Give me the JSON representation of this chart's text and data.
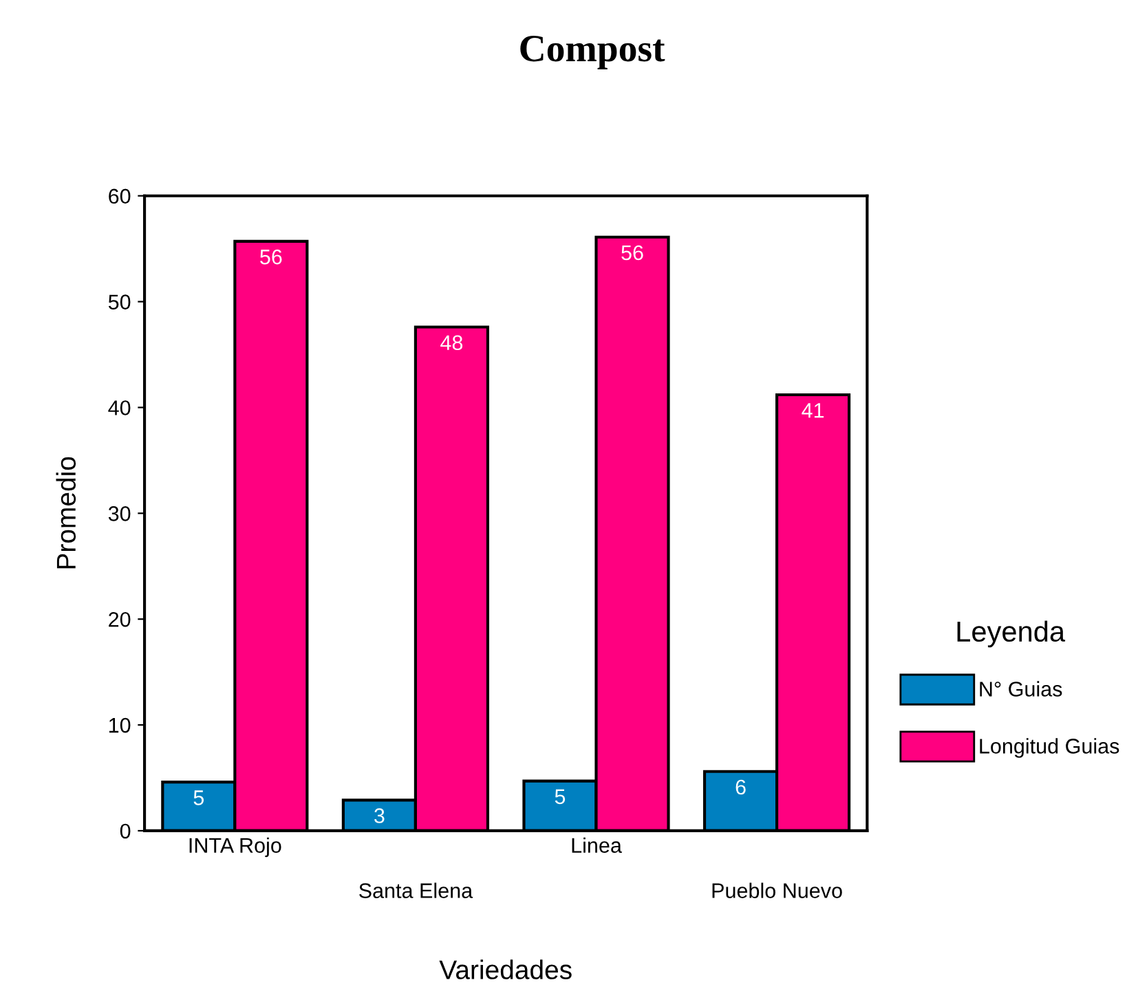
{
  "chart_data": {
    "type": "bar",
    "title": "Compost",
    "xlabel": "Variedades",
    "ylabel": "Promedio",
    "legend_title": "Leyenda",
    "categories": [
      "INTA Rojo",
      "Santa Elena",
      "Linea",
      "Pueblo Nuevo"
    ],
    "series": [
      {
        "name": "N° Guias",
        "color": "#0080c0",
        "values": [
          4.6,
          2.9,
          4.7,
          5.6
        ],
        "value_labels": [
          "5",
          "3",
          "5",
          "6"
        ]
      },
      {
        "name": "Longitud Guias",
        "color": "#ff0080",
        "values": [
          55.7,
          47.6,
          56.1,
          41.2
        ],
        "value_labels": [
          "56",
          "48",
          "56",
          "41"
        ]
      }
    ],
    "ylim": [
      0,
      60
    ],
    "yticks": [
      0,
      10,
      20,
      30,
      40,
      50,
      60
    ],
    "grid": false,
    "legend": "right"
  }
}
